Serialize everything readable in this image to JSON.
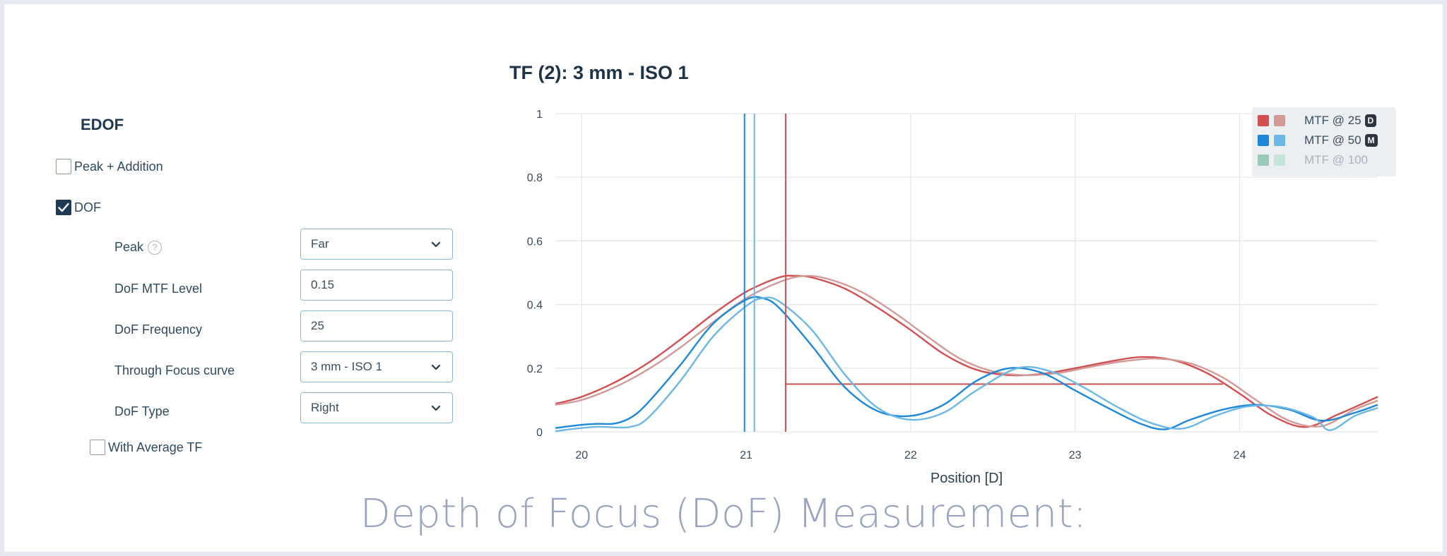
{
  "panel": {
    "title": "EDOF",
    "peak_addition_label": "Peak + Addition",
    "peak_addition_checked": false,
    "dof_label": "DOF",
    "dof_checked": true,
    "fields": {
      "peak_label": "Peak",
      "peak_value": "Far",
      "mtf_level_label": "DoF MTF Level",
      "mtf_level_value": "0.15",
      "frequency_label": "DoF Frequency",
      "frequency_value": "25",
      "curve_label": "Through Focus curve",
      "curve_value": "3 mm - ISO 1",
      "type_label": "DoF Type",
      "type_value": "Right"
    },
    "avg_tf_label": "With Average TF",
    "avg_tf_checked": false,
    "help_glyph": "?"
  },
  "chart_data": {
    "type": "line",
    "title": "TF (2): 3 mm - ISO 1",
    "xlabel": "Position [D]",
    "ylabel": "",
    "xlim": [
      19.84,
      24.84
    ],
    "ylim": [
      0,
      1
    ],
    "xticks": [
      "20",
      "21",
      "22",
      "23",
      "24"
    ],
    "yticks": [
      "0",
      "0.2",
      "0.4",
      "0.6",
      "0.8",
      "1"
    ],
    "grid": true,
    "legend_position": "top-right",
    "legend": [
      {
        "label": "MTF @ 25",
        "badge": "D",
        "colors": [
          "#d24f4f",
          "#d39a98"
        ],
        "faded": false
      },
      {
        "label": "MTF @ 50",
        "badge": "M",
        "colors": [
          "#1e88d8",
          "#6bb8e6"
        ],
        "faded": false
      },
      {
        "label": "MTF @ 100",
        "badge": "",
        "colors": [
          "#9ccab8",
          "#c5e3d8"
        ],
        "faded": true
      }
    ],
    "series": [
      {
        "color": "#d24f4f",
        "x": [
          19.84,
          20.0,
          20.2,
          20.4,
          20.6,
          20.8,
          21.0,
          21.2,
          21.3,
          21.4,
          21.6,
          21.8,
          22.0,
          22.2,
          22.4,
          22.6,
          22.8,
          23.0,
          23.2,
          23.4,
          23.6,
          23.8,
          24.0,
          24.2,
          24.4,
          24.6,
          24.84
        ],
        "y": [
          0.088,
          0.11,
          0.155,
          0.215,
          0.29,
          0.37,
          0.44,
          0.485,
          0.49,
          0.485,
          0.45,
          0.39,
          0.32,
          0.245,
          0.195,
          0.178,
          0.182,
          0.2,
          0.22,
          0.235,
          0.225,
          0.185,
          0.12,
          0.05,
          0.015,
          0.055,
          0.11
        ]
      },
      {
        "color": "#d39a98",
        "x": [
          19.84,
          20.0,
          20.2,
          20.4,
          20.6,
          20.8,
          21.0,
          21.2,
          21.35,
          21.5,
          21.7,
          21.9,
          22.1,
          22.3,
          22.5,
          22.7,
          22.9,
          23.1,
          23.3,
          23.5,
          23.7,
          23.9,
          24.1,
          24.3,
          24.5,
          24.7,
          24.84
        ],
        "y": [
          0.085,
          0.1,
          0.14,
          0.195,
          0.265,
          0.345,
          0.42,
          0.47,
          0.49,
          0.48,
          0.44,
          0.375,
          0.3,
          0.23,
          0.19,
          0.178,
          0.185,
          0.205,
          0.222,
          0.23,
          0.215,
          0.17,
          0.1,
          0.035,
          0.018,
          0.07,
          0.098
        ]
      },
      {
        "color": "#1e88d8",
        "x": [
          19.84,
          20.0,
          20.1,
          20.2,
          20.3,
          20.4,
          20.6,
          20.8,
          21.0,
          21.1,
          21.2,
          21.4,
          21.6,
          21.8,
          22.0,
          22.2,
          22.4,
          22.6,
          22.8,
          23.0,
          23.2,
          23.4,
          23.55,
          23.7,
          23.9,
          24.1,
          24.3,
          24.5,
          24.7,
          24.84
        ],
        "y": [
          0.012,
          0.022,
          0.025,
          0.026,
          0.045,
          0.09,
          0.21,
          0.34,
          0.415,
          0.42,
          0.39,
          0.27,
          0.14,
          0.065,
          0.05,
          0.085,
          0.16,
          0.2,
          0.185,
          0.13,
          0.075,
          0.025,
          0.008,
          0.038,
          0.07,
          0.085,
          0.07,
          0.035,
          0.06,
          0.085
        ]
      },
      {
        "color": "#6bb8e6",
        "x": [
          19.84,
          20.0,
          20.1,
          20.2,
          20.3,
          20.4,
          20.6,
          20.8,
          21.0,
          21.1,
          21.2,
          21.4,
          21.6,
          21.8,
          22.0,
          22.2,
          22.4,
          22.65,
          22.85,
          23.05,
          23.25,
          23.45,
          23.65,
          23.85,
          24.05,
          24.25,
          24.45,
          24.55,
          24.7,
          24.84
        ],
        "y": [
          0.002,
          0.012,
          0.016,
          0.014,
          0.016,
          0.042,
          0.16,
          0.3,
          0.395,
          0.42,
          0.41,
          0.32,
          0.18,
          0.075,
          0.038,
          0.06,
          0.13,
          0.2,
          0.19,
          0.14,
          0.08,
          0.03,
          0.01,
          0.05,
          0.08,
          0.078,
          0.045,
          0.005,
          0.05,
          0.075
        ]
      }
    ],
    "markers": {
      "vertical_lines": [
        {
          "x": 20.99,
          "color": "#1e88d8"
        },
        {
          "x": 21.05,
          "color": "#6bb8e6"
        },
        {
          "x": 21.24,
          "color": "#d24f4f"
        }
      ],
      "dof_level_line": {
        "x_start": 21.24,
        "x_end": 23.9,
        "y": 0.15,
        "color": "#d24f4f"
      }
    }
  },
  "caption": "Depth of Focus (DoF) Measurement:"
}
